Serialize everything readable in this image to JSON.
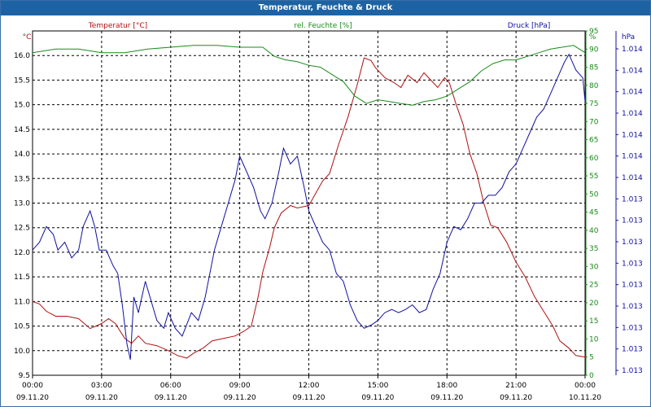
{
  "title": "Temperatur, Feuchte & Druck",
  "colors": {
    "temperature": "#b01010",
    "humidity": "#1a8a1a",
    "pressure": "#1010a0",
    "title_bar": "#1d63a4"
  },
  "chart_data": {
    "type": "line",
    "title": "Temperatur, Feuchte & Druck",
    "x_ticks": [
      {
        "time": "00:00",
        "date": "09.11.20"
      },
      {
        "time": "03:00",
        "date": "09.11.20"
      },
      {
        "time": "06:00",
        "date": "09.11.20"
      },
      {
        "time": "09:00",
        "date": "09.11.20"
      },
      {
        "time": "12:00",
        "date": "09.11.20"
      },
      {
        "time": "15:00",
        "date": "09.11.20"
      },
      {
        "time": "18:00",
        "date": "09.11.20"
      },
      {
        "time": "21:00",
        "date": "09.11.20"
      },
      {
        "time": "00:00",
        "date": "10.11.20"
      }
    ],
    "x_range_hours": [
      0,
      24
    ],
    "grid": true,
    "axes": {
      "temperature": {
        "label": "Temperatur [°C]",
        "unit": "°C",
        "range": [
          9.5,
          16.5
        ],
        "ticks": [
          "9.5",
          "10.0",
          "10.5",
          "11.0",
          "11.5",
          "12.0",
          "12.5",
          "13.0",
          "13.5",
          "14.0",
          "14.5",
          "15.0",
          "15.5",
          "16.0"
        ]
      },
      "humidity": {
        "label": "rel. Feuchte [%]",
        "unit": "%",
        "range": [
          0,
          95
        ],
        "ticks": [
          "0",
          "5",
          "10",
          "15",
          "20",
          "25",
          "30",
          "35",
          "40",
          "45",
          "50",
          "55",
          "60",
          "65",
          "70",
          "75",
          "80",
          "85",
          "90",
          "95"
        ]
      },
      "pressure": {
        "label": "Druck [hPa]",
        "unit": "hPa",
        "range": [
          1012.4,
          1014.6
        ],
        "ticks": [
          "1.013",
          "1.013",
          "1.013",
          "1.013",
          "1.013",
          "1.013",
          "1.013",
          "1.013",
          "1.013",
          "1.014",
          "1.014",
          "1.014",
          "1.014",
          "1.014",
          "1.014",
          "1.014"
        ]
      }
    },
    "series": [
      {
        "name": "Temperatur [°C]",
        "axis": "temperature",
        "points": [
          [
            0,
            11.0
          ],
          [
            0.3,
            10.95
          ],
          [
            0.6,
            10.8
          ],
          [
            1.0,
            10.7
          ],
          [
            1.5,
            10.7
          ],
          [
            2.0,
            10.65
          ],
          [
            2.5,
            10.45
          ],
          [
            3.0,
            10.55
          ],
          [
            3.3,
            10.65
          ],
          [
            3.6,
            10.55
          ],
          [
            4.0,
            10.25
          ],
          [
            4.3,
            10.15
          ],
          [
            4.6,
            10.3
          ],
          [
            4.9,
            10.15
          ],
          [
            5.4,
            10.1
          ],
          [
            5.9,
            10.0
          ],
          [
            6.3,
            9.9
          ],
          [
            6.7,
            9.85
          ],
          [
            7.0,
            9.95
          ],
          [
            7.4,
            10.05
          ],
          [
            7.8,
            10.2
          ],
          [
            8.3,
            10.25
          ],
          [
            8.8,
            10.3
          ],
          [
            9.2,
            10.4
          ],
          [
            9.5,
            10.5
          ],
          [
            9.8,
            11.1
          ],
          [
            10.0,
            11.6
          ],
          [
            10.3,
            12.1
          ],
          [
            10.5,
            12.5
          ],
          [
            10.8,
            12.8
          ],
          [
            11.2,
            12.95
          ],
          [
            11.5,
            12.9
          ],
          [
            12.0,
            12.95
          ],
          [
            12.3,
            13.2
          ],
          [
            12.6,
            13.45
          ],
          [
            12.9,
            13.6
          ],
          [
            13.3,
            14.2
          ],
          [
            13.7,
            14.75
          ],
          [
            14.1,
            15.4
          ],
          [
            14.4,
            15.95
          ],
          [
            14.7,
            15.9
          ],
          [
            14.9,
            15.75
          ],
          [
            15.3,
            15.55
          ],
          [
            15.7,
            15.45
          ],
          [
            16.0,
            15.35
          ],
          [
            16.3,
            15.6
          ],
          [
            16.7,
            15.45
          ],
          [
            17.0,
            15.65
          ],
          [
            17.3,
            15.5
          ],
          [
            17.6,
            15.35
          ],
          [
            17.9,
            15.55
          ],
          [
            18.1,
            15.45
          ],
          [
            18.4,
            15.0
          ],
          [
            18.7,
            14.6
          ],
          [
            19.0,
            14.0
          ],
          [
            19.3,
            13.6
          ],
          [
            19.6,
            13.0
          ],
          [
            19.9,
            12.55
          ],
          [
            20.2,
            12.5
          ],
          [
            20.6,
            12.2
          ],
          [
            21.0,
            11.8
          ],
          [
            21.4,
            11.5
          ],
          [
            21.8,
            11.1
          ],
          [
            22.2,
            10.8
          ],
          [
            22.6,
            10.5
          ],
          [
            22.9,
            10.2
          ],
          [
            23.3,
            10.05
          ],
          [
            23.6,
            9.9
          ],
          [
            24.0,
            9.87
          ]
        ]
      },
      {
        "name": "rel. Feuchte [%]",
        "axis": "humidity",
        "points": [
          [
            0,
            89
          ],
          [
            1.0,
            90
          ],
          [
            2.0,
            90
          ],
          [
            3.0,
            89
          ],
          [
            4.0,
            89
          ],
          [
            5.0,
            90
          ],
          [
            6.0,
            90.5
          ],
          [
            7.0,
            91
          ],
          [
            8.0,
            91
          ],
          [
            9.0,
            90.5
          ],
          [
            10.0,
            90.5
          ],
          [
            10.5,
            88
          ],
          [
            11.0,
            87
          ],
          [
            11.5,
            86.5
          ],
          [
            12.0,
            85.5
          ],
          [
            12.5,
            85
          ],
          [
            13.0,
            83
          ],
          [
            13.5,
            81
          ],
          [
            14.0,
            77
          ],
          [
            14.5,
            75
          ],
          [
            15.0,
            76
          ],
          [
            15.5,
            75.5
          ],
          [
            16.0,
            75
          ],
          [
            16.5,
            74.5
          ],
          [
            17.0,
            75.5
          ],
          [
            17.5,
            76
          ],
          [
            18.0,
            77
          ],
          [
            18.5,
            79
          ],
          [
            19.0,
            81
          ],
          [
            19.5,
            84
          ],
          [
            20.0,
            86
          ],
          [
            20.5,
            87
          ],
          [
            21.0,
            87
          ],
          [
            21.5,
            88
          ],
          [
            22.0,
            89
          ],
          [
            22.5,
            90
          ],
          [
            23.0,
            90.5
          ],
          [
            23.5,
            91
          ],
          [
            24.0,
            89
          ]
        ]
      },
      {
        "name": "Druck [hPa]",
        "axis": "pressure",
        "points": [
          [
            0,
            1013.2
          ],
          [
            0.3,
            1013.25
          ],
          [
            0.6,
            1013.35
          ],
          [
            0.9,
            1013.3
          ],
          [
            1.1,
            1013.2
          ],
          [
            1.4,
            1013.25
          ],
          [
            1.7,
            1013.15
          ],
          [
            2.0,
            1013.2
          ],
          [
            2.2,
            1013.35
          ],
          [
            2.5,
            1013.45
          ],
          [
            2.7,
            1013.35
          ],
          [
            2.9,
            1013.2
          ],
          [
            3.2,
            1013.2
          ],
          [
            3.5,
            1013.1
          ],
          [
            3.7,
            1013.05
          ],
          [
            3.9,
            1012.85
          ],
          [
            4.1,
            1012.6
          ],
          [
            4.25,
            1012.5
          ],
          [
            4.4,
            1012.9
          ],
          [
            4.6,
            1012.8
          ],
          [
            4.9,
            1013.0
          ],
          [
            5.1,
            1012.9
          ],
          [
            5.4,
            1012.75
          ],
          [
            5.7,
            1012.7
          ],
          [
            5.9,
            1012.8
          ],
          [
            6.2,
            1012.7
          ],
          [
            6.5,
            1012.65
          ],
          [
            6.9,
            1012.8
          ],
          [
            7.2,
            1012.75
          ],
          [
            7.5,
            1012.9
          ],
          [
            7.9,
            1013.2
          ],
          [
            8.2,
            1013.35
          ],
          [
            8.5,
            1013.5
          ],
          [
            8.8,
            1013.65
          ],
          [
            9.0,
            1013.8
          ],
          [
            9.3,
            1013.7
          ],
          [
            9.6,
            1013.6
          ],
          [
            9.9,
            1013.45
          ],
          [
            10.1,
            1013.4
          ],
          [
            10.4,
            1013.5
          ],
          [
            10.7,
            1013.7
          ],
          [
            10.9,
            1013.85
          ],
          [
            11.2,
            1013.75
          ],
          [
            11.5,
            1013.8
          ],
          [
            11.8,
            1013.6
          ],
          [
            12.0,
            1013.45
          ],
          [
            12.3,
            1013.35
          ],
          [
            12.6,
            1013.25
          ],
          [
            12.9,
            1013.2
          ],
          [
            13.2,
            1013.05
          ],
          [
            13.5,
            1013.0
          ],
          [
            13.8,
            1012.85
          ],
          [
            14.1,
            1012.75
          ],
          [
            14.4,
            1012.7
          ],
          [
            14.7,
            1012.72
          ],
          [
            15.0,
            1012.75
          ],
          [
            15.3,
            1012.8
          ],
          [
            15.6,
            1012.82
          ],
          [
            15.9,
            1012.8
          ],
          [
            16.2,
            1012.82
          ],
          [
            16.5,
            1012.85
          ],
          [
            16.8,
            1012.8
          ],
          [
            17.1,
            1012.82
          ],
          [
            17.4,
            1012.95
          ],
          [
            17.7,
            1013.05
          ],
          [
            18.0,
            1013.25
          ],
          [
            18.3,
            1013.35
          ],
          [
            18.6,
            1013.33
          ],
          [
            18.9,
            1013.4
          ],
          [
            19.2,
            1013.5
          ],
          [
            19.5,
            1013.5
          ],
          [
            19.8,
            1013.55
          ],
          [
            20.1,
            1013.55
          ],
          [
            20.4,
            1013.6
          ],
          [
            20.7,
            1013.7
          ],
          [
            21.0,
            1013.75
          ],
          [
            21.3,
            1013.85
          ],
          [
            21.6,
            1013.95
          ],
          [
            21.9,
            1014.05
          ],
          [
            22.2,
            1014.1
          ],
          [
            22.5,
            1014.2
          ],
          [
            22.8,
            1014.3
          ],
          [
            23.1,
            1014.4
          ],
          [
            23.3,
            1014.45
          ],
          [
            23.6,
            1014.35
          ],
          [
            23.9,
            1014.3
          ],
          [
            24.0,
            1014.15
          ]
        ]
      }
    ]
  }
}
